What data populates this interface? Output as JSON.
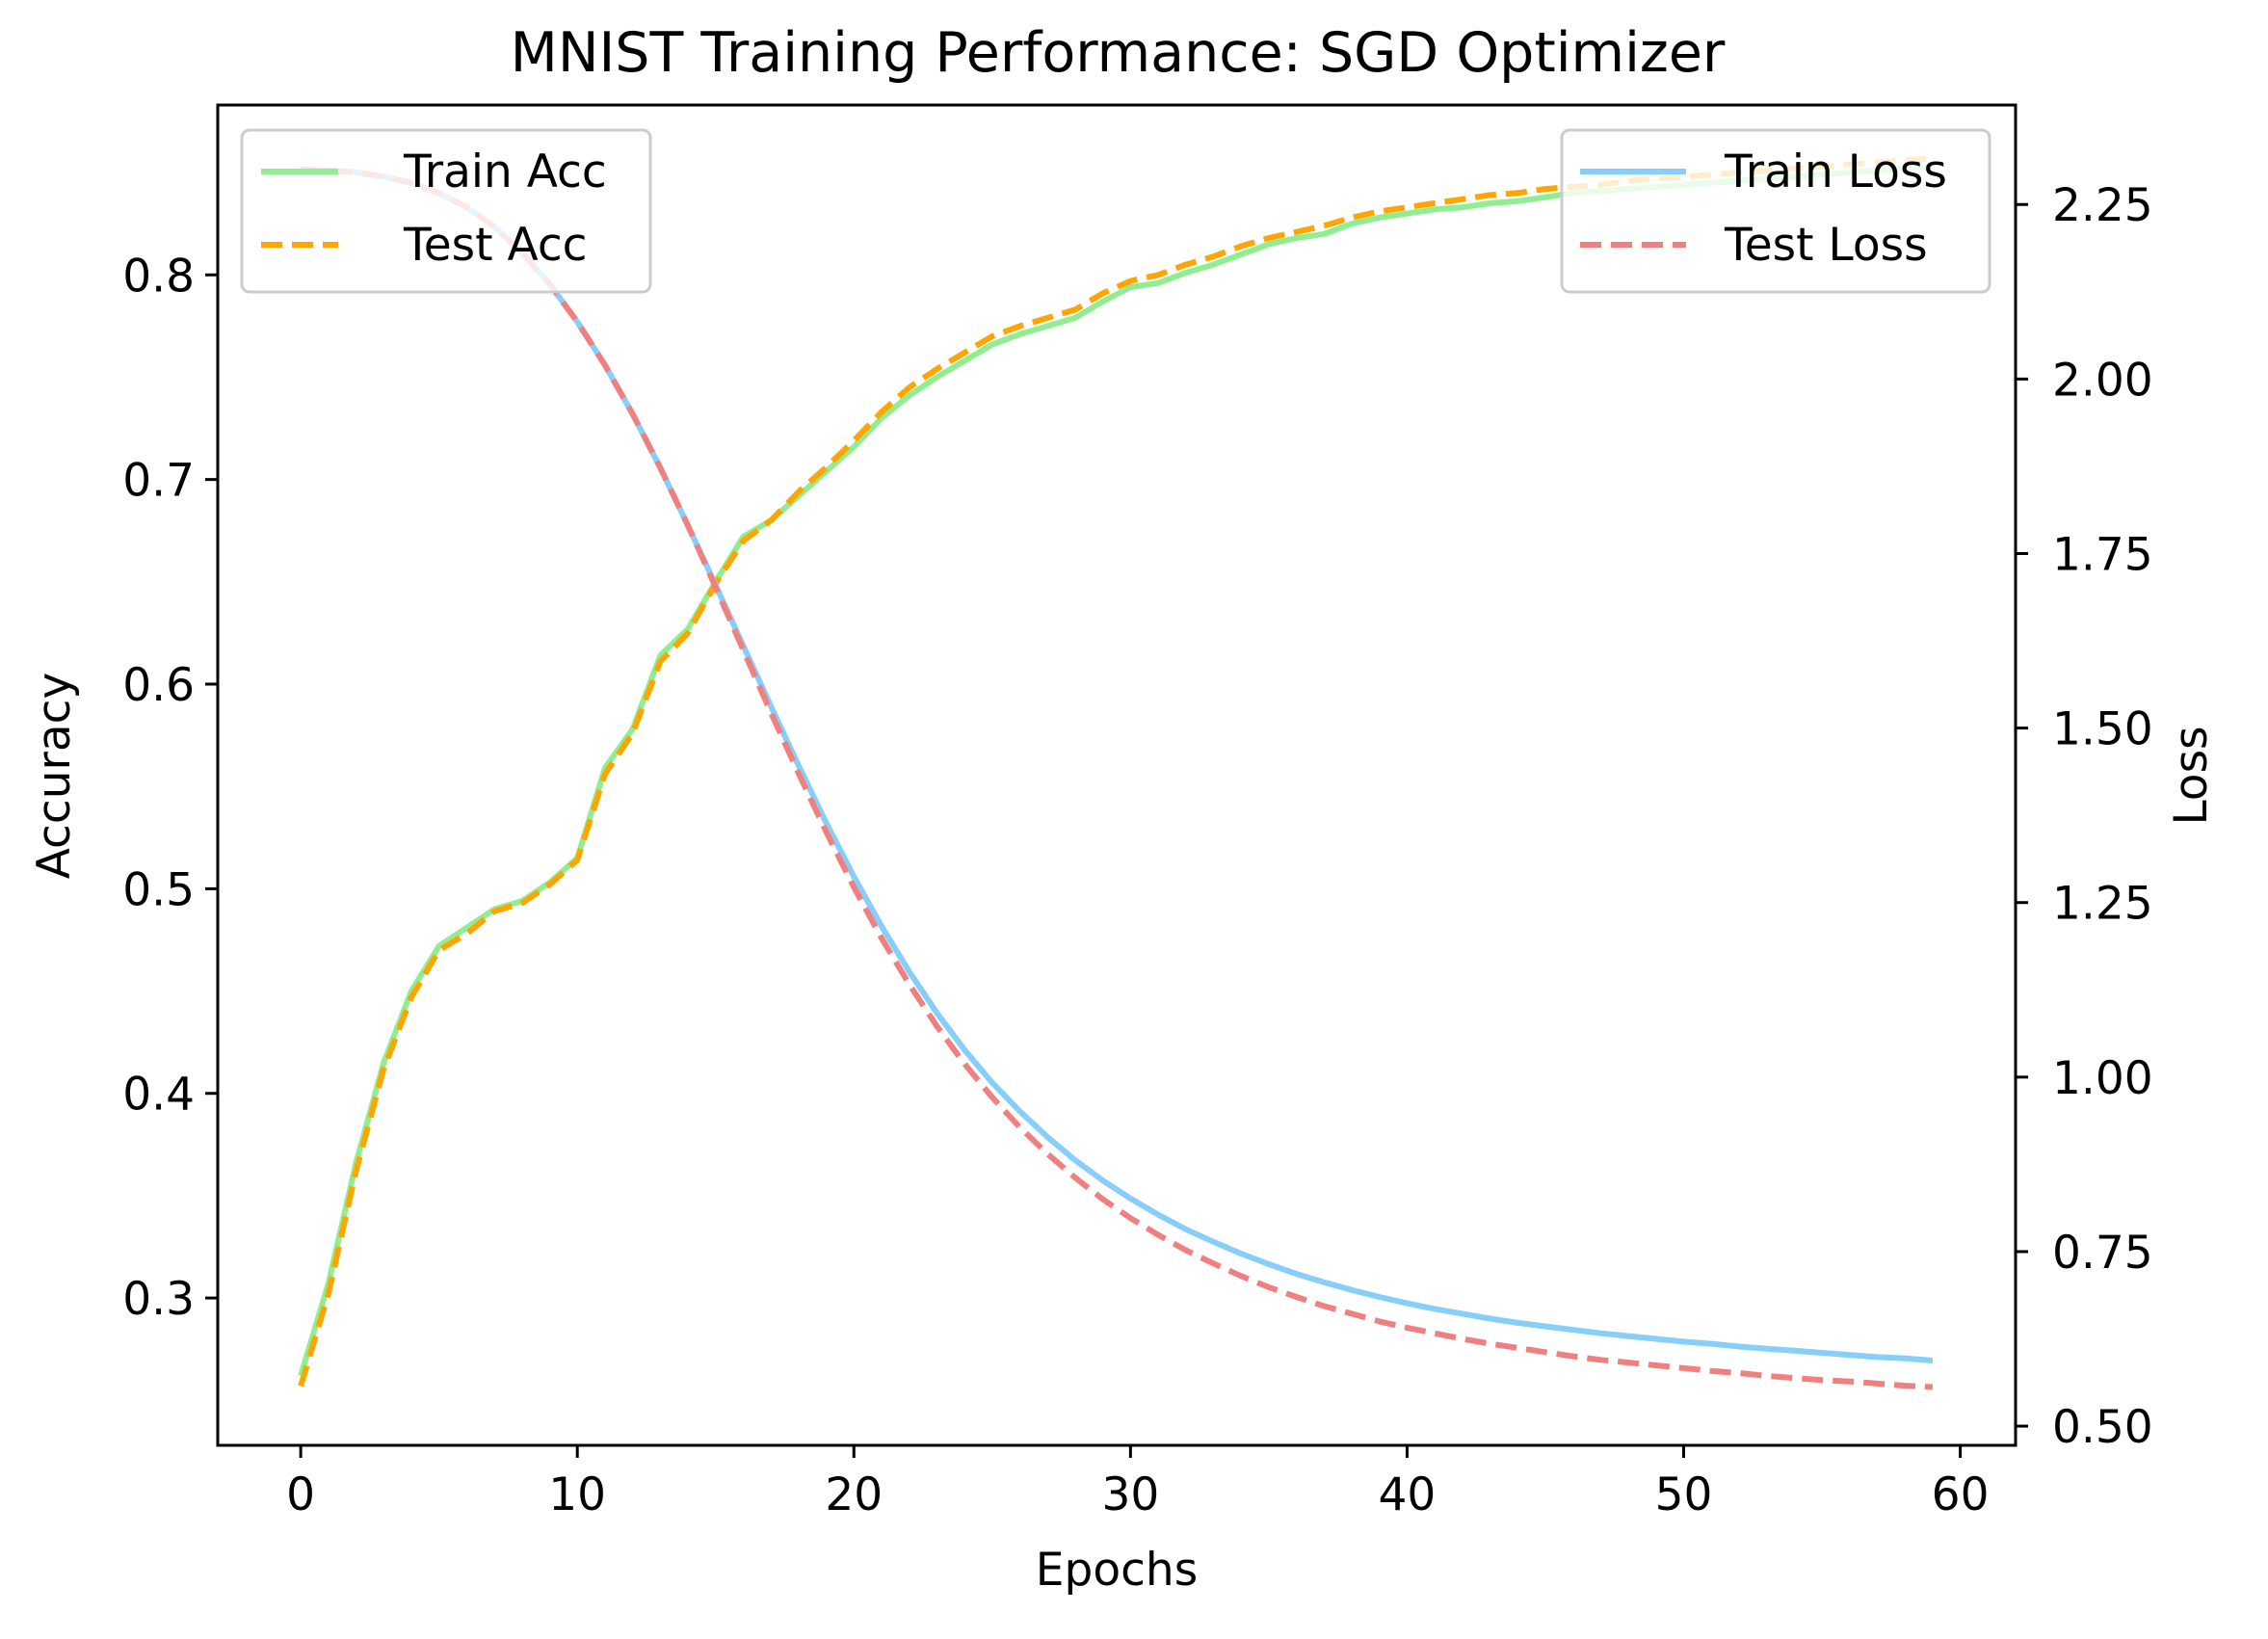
{
  "chart_data": {
    "type": "line",
    "title": "MNIST Training Performance: SGD Optimizer",
    "xlabel": "Epochs",
    "ylabel": "Accuracy",
    "y2label": "Loss",
    "xlim": [
      -3,
      62
    ],
    "ylim": [
      0.228,
      0.883
    ],
    "y2lim": [
      0.4725,
      2.3925
    ],
    "xticks": [
      0,
      10,
      20,
      30,
      40,
      50,
      60
    ],
    "xtick_labels": [
      "0",
      "10",
      "20",
      "30",
      "40",
      "50",
      "60"
    ],
    "yticks": [
      0.3,
      0.4,
      0.5,
      0.6,
      0.7,
      0.8
    ],
    "ytick_labels": [
      "0.3",
      "0.4",
      "0.5",
      "0.6",
      "0.7",
      "0.8"
    ],
    "y2ticks": [
      0.5,
      0.75,
      1.0,
      1.25,
      1.5,
      1.75,
      2.0,
      2.25
    ],
    "y2tick_labels": [
      "0.50",
      "0.75",
      "1.00",
      "1.25",
      "1.50",
      "1.75",
      "2.00",
      "2.25"
    ],
    "grid": false,
    "legend_left": {
      "placement": "upper-left",
      "entries": [
        "Train Acc",
        "Test Acc"
      ]
    },
    "legend_right": {
      "placement": "upper-right",
      "entries": [
        "Train Loss",
        "Test Loss"
      ]
    },
    "x": [
      0,
      1,
      2,
      3,
      4,
      5,
      6,
      7,
      8,
      9,
      10,
      11,
      12,
      13,
      14,
      15,
      16,
      17,
      18,
      19,
      20,
      21,
      22,
      23,
      24,
      25,
      26,
      27,
      28,
      29,
      30,
      31,
      32,
      33,
      34,
      35,
      36,
      37,
      38,
      39,
      40,
      41,
      42,
      43,
      44,
      45,
      46,
      47,
      48,
      49,
      50,
      51,
      52,
      53,
      54,
      55,
      56,
      57,
      58,
      59
    ],
    "series": [
      {
        "name": "Train Acc",
        "axis": "left",
        "color": "#90ee90",
        "dash": "solid",
        "values": [
          0.262,
          0.307,
          0.366,
          0.415,
          0.45,
          0.472,
          0.481,
          0.49,
          0.494,
          0.503,
          0.515,
          0.559,
          0.578,
          0.614,
          0.627,
          0.65,
          0.672,
          0.68,
          0.692,
          0.704,
          0.716,
          0.73,
          0.741,
          0.75,
          0.758,
          0.766,
          0.771,
          0.775,
          0.779,
          0.787,
          0.794,
          0.796,
          0.801,
          0.805,
          0.81,
          0.815,
          0.818,
          0.82,
          0.825,
          0.828,
          0.83,
          0.832,
          0.833,
          0.835,
          0.836,
          0.838,
          0.84,
          0.841,
          0.842,
          0.843,
          0.844,
          0.845,
          0.846,
          0.847,
          0.848,
          0.849,
          0.85,
          0.851,
          0.852,
          0.853
        ]
      },
      {
        "name": "Test Acc",
        "axis": "left",
        "color": "#ffa500",
        "dash": "dashed",
        "values": [
          0.257,
          0.302,
          0.362,
          0.412,
          0.447,
          0.47,
          0.478,
          0.489,
          0.493,
          0.502,
          0.514,
          0.556,
          0.576,
          0.611,
          0.625,
          0.649,
          0.67,
          0.68,
          0.694,
          0.706,
          0.719,
          0.733,
          0.745,
          0.754,
          0.762,
          0.77,
          0.775,
          0.779,
          0.783,
          0.791,
          0.797,
          0.8,
          0.805,
          0.809,
          0.814,
          0.818,
          0.821,
          0.824,
          0.828,
          0.831,
          0.833,
          0.835,
          0.837,
          0.839,
          0.84,
          0.842,
          0.843,
          0.844,
          0.846,
          0.847,
          0.848,
          0.849,
          0.85,
          0.851,
          0.852,
          0.853,
          0.854,
          0.855,
          0.856,
          0.857
        ]
      },
      {
        "name": "Train Loss",
        "axis": "right",
        "color": "#87cefa",
        "dash": "solid",
        "values": [
          2.3,
          2.299,
          2.296,
          2.29,
          2.281,
          2.266,
          2.246,
          2.218,
          2.181,
          2.136,
          2.082,
          2.02,
          1.95,
          1.873,
          1.79,
          1.705,
          1.618,
          1.531,
          1.446,
          1.364,
          1.287,
          1.216,
          1.151,
          1.092,
          1.039,
          0.992,
          0.951,
          0.914,
          0.881,
          0.852,
          0.826,
          0.803,
          0.782,
          0.764,
          0.747,
          0.732,
          0.718,
          0.706,
          0.695,
          0.685,
          0.676,
          0.668,
          0.661,
          0.654,
          0.648,
          0.643,
          0.638,
          0.633,
          0.629,
          0.625,
          0.621,
          0.618,
          0.614,
          0.611,
          0.608,
          0.605,
          0.602,
          0.599,
          0.597,
          0.594
        ]
      },
      {
        "name": "Test Loss",
        "axis": "right",
        "color": "#f08080",
        "dash": "dashed",
        "values": [
          2.3,
          2.299,
          2.296,
          2.29,
          2.281,
          2.266,
          2.246,
          2.218,
          2.181,
          2.136,
          2.082,
          2.02,
          1.95,
          1.873,
          1.79,
          1.702,
          1.612,
          1.522,
          1.435,
          1.351,
          1.272,
          1.199,
          1.133,
          1.073,
          1.019,
          0.971,
          0.928,
          0.89,
          0.856,
          0.825,
          0.798,
          0.774,
          0.752,
          0.733,
          0.715,
          0.699,
          0.685,
          0.672,
          0.661,
          0.65,
          0.641,
          0.633,
          0.625,
          0.618,
          0.612,
          0.606,
          0.6,
          0.595,
          0.591,
          0.587,
          0.583,
          0.579,
          0.576,
          0.572,
          0.569,
          0.566,
          0.564,
          0.561,
          0.558,
          0.556
        ]
      }
    ]
  }
}
